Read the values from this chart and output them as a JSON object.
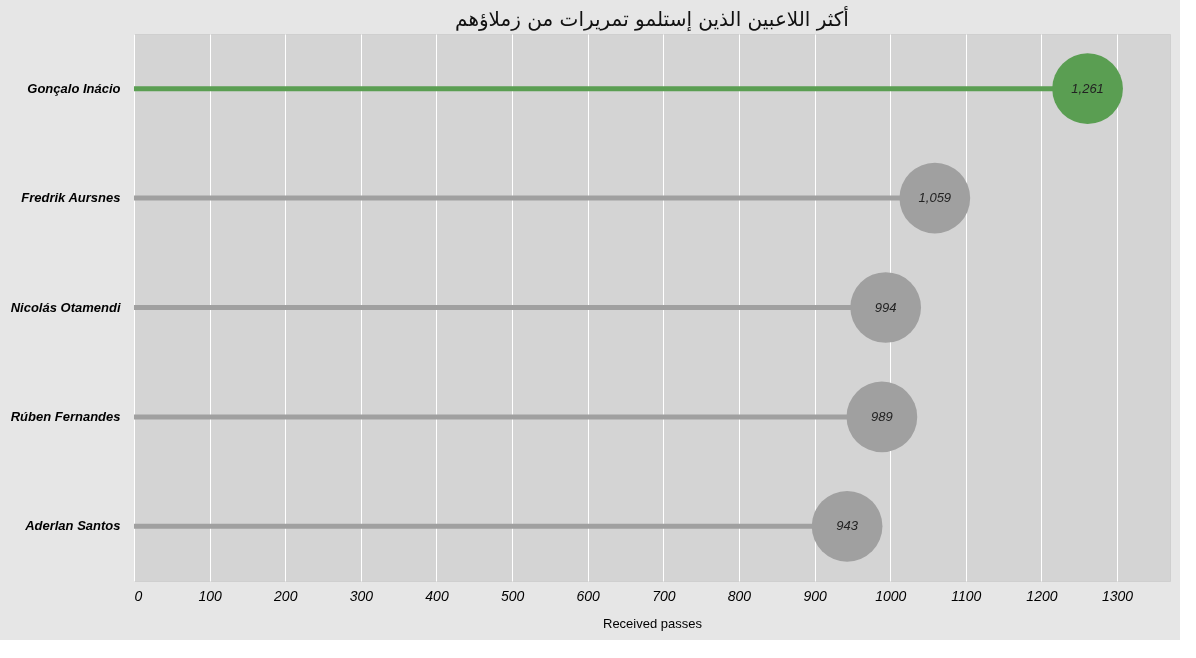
{
  "chart_data": {
    "type": "lollipop",
    "orientation": "horizontal",
    "title": "أكثر اللاعبين الذين إستلمو تمريرات من زملاؤهم",
    "xlabel": "Received passes",
    "categories": [
      "Gonçalo Inácio",
      "Fredrik Aursnes",
      "Nicolás Otamendi",
      "Rúben Fernandes",
      "Aderlan Santos"
    ],
    "values": [
      1261,
      1059,
      994,
      989,
      943
    ],
    "value_labels": [
      "1,261",
      "1,059",
      "994",
      "989",
      "943"
    ],
    "colors": [
      "#5a9e52",
      "#a0a0a0",
      "#a0a0a0",
      "#a0a0a0",
      "#a0a0a0"
    ],
    "xlim": [
      0,
      1370
    ],
    "xticks": [
      0,
      100,
      200,
      300,
      400,
      500,
      600,
      700,
      800,
      900,
      1000,
      1100,
      1200,
      1300
    ],
    "grid": "x",
    "marker": "circle"
  }
}
